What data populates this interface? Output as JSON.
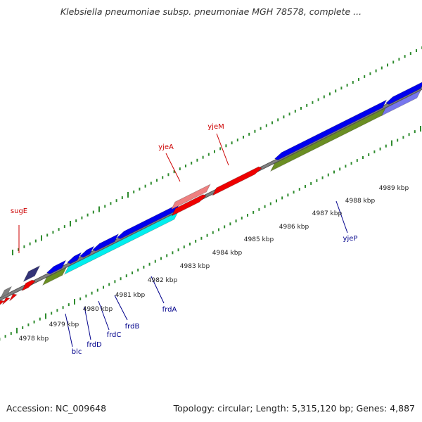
{
  "header": {
    "title": "Klebsiella pneumoniae subsp. pneumoniae MGH 78578, complete ..."
  },
  "footer": {
    "accession": "Accession: NC_009648",
    "info": "Topology: circular; Length: 5,315,120 bp; Genes: 4,887"
  },
  "colors": {
    "backbone": "#808080",
    "tick": "#2e8b2e",
    "kbp_label": "#222222",
    "red_label": "#cc0000",
    "blue_label": "#00008b"
  },
  "kbp_labels": [
    "4978 kbp",
    "4979 kbp",
    "4980 kbp",
    "4981 kbp",
    "4982 kbp",
    "4983 kbp",
    "4984 kbp",
    "4985 kbp",
    "4986 kbp",
    "4987 kbp",
    "4988 kbp",
    "4989 kbp"
  ],
  "gene_labels": [
    "sugE",
    "yjeA",
    "yjeM",
    "blc",
    "frdD",
    "frdC",
    "frdB",
    "frdA",
    "yjeP"
  ],
  "features": [
    {
      "name": "gene-gray-small",
      "color": "#808080"
    },
    {
      "name": "gene-navy-sugE",
      "color": "#333377"
    },
    {
      "name": "gene-red-left-1",
      "color": "#ee0000"
    },
    {
      "name": "gene-red-left-2",
      "color": "#ee0000"
    },
    {
      "name": "gene-red-left-3",
      "color": "#ee0000"
    },
    {
      "name": "gene-red-left-4",
      "color": "#ee0000"
    },
    {
      "name": "gene-blue-blc",
      "color": "#0000ee"
    },
    {
      "name": "gene-blue-frdD",
      "color": "#0000ee"
    },
    {
      "name": "gene-blue-frdC",
      "color": "#0000ee"
    },
    {
      "name": "gene-blue-frdB",
      "color": "#0000ee"
    },
    {
      "name": "gene-blue-frdA",
      "color": "#0000ee"
    },
    {
      "name": "cds-olive-blc",
      "color": "#6b8e23"
    },
    {
      "name": "cds-cyan-frd",
      "color": "#00eeee"
    },
    {
      "name": "gene-pink-yjeA",
      "color": "#ee8080"
    },
    {
      "name": "gene-red-yjeA",
      "color": "#ee0000"
    },
    {
      "name": "gene-red-yjeM",
      "color": "#ee0000"
    },
    {
      "name": "gene-blue-yjeP",
      "color": "#0000ee"
    },
    {
      "name": "gene-blue-right",
      "color": "#0000ee"
    },
    {
      "name": "cds-olive-yjeP",
      "color": "#6b8e23"
    },
    {
      "name": "cds-lightblue-right",
      "color": "#7777ee"
    }
  ]
}
